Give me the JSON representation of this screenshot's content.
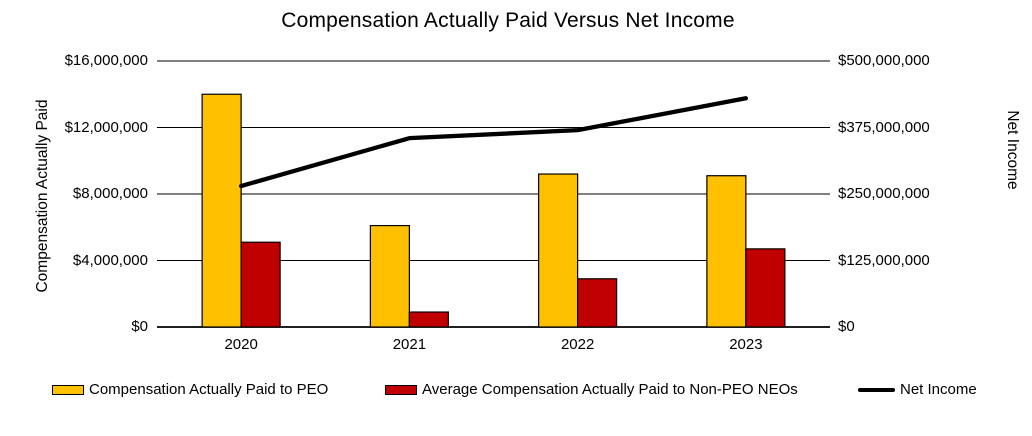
{
  "chart_data": {
    "type": "combo",
    "title": "Compensation Actually Paid Versus Net Income",
    "categories": [
      "2020",
      "2021",
      "2022",
      "2023"
    ],
    "series": [
      {
        "name": "Compensation Actually Paid to PEO",
        "type": "bar",
        "axis": "left",
        "color": "#FFC000",
        "values": [
          14000000,
          6100000,
          9200000,
          9100000
        ]
      },
      {
        "name": "Average Compensation Actually Paid to Non-PEO NEOs",
        "type": "bar",
        "axis": "left",
        "color": "#C00000",
        "values": [
          5100000,
          900000,
          2900000,
          4700000
        ]
      },
      {
        "name": "Net Income",
        "type": "line",
        "axis": "right",
        "color": "#000000",
        "values": [
          265000000,
          355000000,
          370000000,
          430000000
        ]
      }
    ],
    "left_axis": {
      "title": "Compensation Actually Paid",
      "min": 0,
      "max": 16000000,
      "tick_interval": 4000000,
      "tick_labels": [
        "$16,000,000",
        "$12,000,000",
        "$8,000,000",
        "$4,000,000",
        "$0"
      ]
    },
    "right_axis": {
      "title": "Net Income",
      "min": 0,
      "max": 500000000,
      "tick_interval": 125000000,
      "tick_labels": [
        "$500,000,000",
        "$375,000,000",
        "$250,000,000",
        "$125,000,000",
        "$0"
      ]
    },
    "grid": true,
    "gridline_color": "#000000",
    "legend_position": "bottom"
  }
}
